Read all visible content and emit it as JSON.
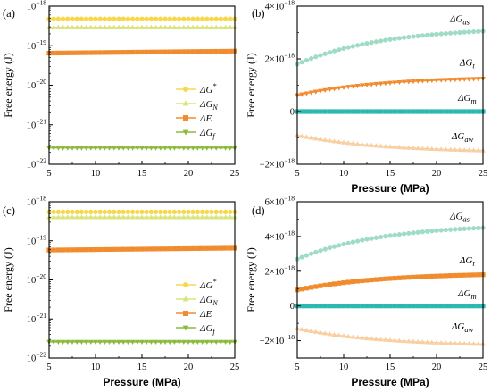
{
  "panels": [
    {
      "tag": "(a)",
      "chart_data": {
        "type": "line",
        "xlabel": "",
        "ylabel": "Free energy (J)",
        "xlim": [
          5,
          25
        ],
        "ylim": [
          1e-22,
          1e-18
        ],
        "yscale": "log",
        "xticks": [
          5,
          10,
          15,
          20,
          25
        ],
        "yticks": [
          {
            "value": 1e-22,
            "base": "10",
            "exp": "−22"
          },
          {
            "value": 1e-21,
            "base": "10",
            "exp": "−21"
          },
          {
            "value": 1e-20,
            "base": "10",
            "exp": "−20"
          },
          {
            "value": 1e-19,
            "base": "10",
            "exp": "−19"
          },
          {
            "value": 1e-18,
            "base": "10",
            "exp": "−18"
          }
        ],
        "legend": {
          "position": "lower-right"
        },
        "series": [
          {
            "name": "ΔG*",
            "legend_base": "ΔG",
            "legend_sup": "*",
            "legend_sub": "",
            "color": "#f7d84c",
            "marker": "circle",
            "y_start": 4.8e-19,
            "y_end": 4.8e-19,
            "shape": "linear"
          },
          {
            "name": "ΔG_N",
            "legend_base": "ΔG",
            "legend_sup": "",
            "legend_sub": "N",
            "color": "#d8e57a",
            "marker": "triangle-up",
            "y_start": 2.9e-19,
            "y_end": 2.9e-19,
            "shape": "linear"
          },
          {
            "name": "ΔE",
            "legend_base": "ΔE",
            "legend_sup": "",
            "legend_sub": "",
            "color": "#f08b2e",
            "marker": "square",
            "y_start": 6.5e-20,
            "y_end": 7.3e-20,
            "shape": "linear"
          },
          {
            "name": "ΔG_f",
            "legend_base": "ΔG",
            "legend_sup": "",
            "legend_sub": "f",
            "color": "#8cba3c",
            "marker": "triangle-down",
            "y_start": 2.6e-22,
            "y_end": 2.6e-22,
            "shape": "linear"
          }
        ]
      }
    },
    {
      "tag": "(b)",
      "chart_data": {
        "type": "line",
        "xlabel": "Pressure (MPa)",
        "ylabel": "Free energy (J)",
        "xlim": [
          5,
          25
        ],
        "ylim": [
          -2e-18,
          4e-18
        ],
        "yscale": "linear",
        "xticks": [
          5,
          10,
          15,
          20,
          25
        ],
        "yticks": [
          {
            "value": -2e-18,
            "base": "−2×10",
            "exp": "−18"
          },
          {
            "value": 0,
            "plain": "0"
          },
          {
            "value": 2e-18,
            "base": "2×10",
            "exp": "−18"
          },
          {
            "value": 4e-18,
            "base": "4×10",
            "exp": "−18"
          }
        ],
        "series": [
          {
            "name": "ΔG_as",
            "label_base": "ΔG",
            "label_sub": "as",
            "color": "#9fdcc4",
            "marker": "circle",
            "y_start": 1.8e-18,
            "y_end": 3.05e-18,
            "shape": "saturating",
            "label_at": [
              22.5,
              3.4e-18
            ]
          },
          {
            "name": "ΔG_t",
            "label_base": "ΔG",
            "label_sub": "t",
            "color": "#f08b2e",
            "marker": "triangle-down",
            "y_start": 6.2e-19,
            "y_end": 1.25e-18,
            "shape": "saturating",
            "label_at": [
              23.3,
              1.75e-18
            ]
          },
          {
            "name": "ΔG_m",
            "label_base": "ΔG",
            "label_sub": "m",
            "color": "#2bb8b0",
            "marker": "square",
            "y_start": 0.0,
            "y_end": 0.0,
            "shape": "linear",
            "label_at": [
              23.3,
              4e-19
            ]
          },
          {
            "name": "ΔG_aw",
            "label_base": "ΔG",
            "label_sub": "aw",
            "color": "#f8cfa0",
            "marker": "triangle-up",
            "y_start": -9e-19,
            "y_end": -1.48e-18,
            "shape": "saturating",
            "label_at": [
              22.8,
              -1.05e-18
            ]
          }
        ]
      }
    },
    {
      "tag": "(c)",
      "chart_data": {
        "type": "line",
        "xlabel": "Pressure (MPa)",
        "ylabel": "Free energy (J)",
        "xlim": [
          5,
          25
        ],
        "ylim": [
          1e-22,
          1e-18
        ],
        "yscale": "log",
        "xticks": [
          5,
          10,
          15,
          20,
          25
        ],
        "yticks": [
          {
            "value": 1e-22,
            "base": "10",
            "exp": "−22"
          },
          {
            "value": 1e-21,
            "base": "10",
            "exp": "−21"
          },
          {
            "value": 1e-20,
            "base": "10",
            "exp": "−20"
          },
          {
            "value": 1e-19,
            "base": "10",
            "exp": "−19"
          },
          {
            "value": 1e-18,
            "base": "10",
            "exp": "−18"
          }
        ],
        "legend": {
          "position": "lower-right"
        },
        "series": [
          {
            "name": "ΔG*",
            "legend_base": "ΔG",
            "legend_sup": "*",
            "legend_sub": "",
            "color": "#f7d84c",
            "marker": "circle",
            "y_start": 5.5e-19,
            "y_end": 5.5e-19,
            "shape": "linear"
          },
          {
            "name": "ΔG_N",
            "legend_base": "ΔG",
            "legend_sup": "",
            "legend_sub": "N",
            "color": "#d8e57a",
            "marker": "triangle-up",
            "y_start": 4e-19,
            "y_end": 4e-19,
            "shape": "linear"
          },
          {
            "name": "ΔE",
            "legend_base": "ΔE",
            "legend_sup": "",
            "legend_sub": "",
            "color": "#f08b2e",
            "marker": "square",
            "y_start": 5.8e-20,
            "y_end": 6.5e-20,
            "shape": "linear"
          },
          {
            "name": "ΔG_f",
            "legend_base": "ΔG",
            "legend_sup": "",
            "legend_sub": "f",
            "color": "#8cba3c",
            "marker": "triangle-down",
            "y_start": 2.6e-22,
            "y_end": 2.6e-22,
            "shape": "linear"
          }
        ]
      }
    },
    {
      "tag": "(d)",
      "chart_data": {
        "type": "line",
        "xlabel": "Pressure (MPa)",
        "ylabel": "Free energy (J)",
        "xlim": [
          5,
          25
        ],
        "ylim": [
          -3e-18,
          6e-18
        ],
        "yscale": "linear",
        "xticks": [
          5,
          10,
          15,
          20,
          25
        ],
        "yticks": [
          {
            "value": -2e-18,
            "base": "−2×10",
            "exp": "−18"
          },
          {
            "value": 0,
            "plain": "0"
          },
          {
            "value": 2e-18,
            "base": "2×10",
            "exp": "−18"
          },
          {
            "value": 4e-18,
            "base": "4×10",
            "exp": "−18"
          },
          {
            "value": 6e-18,
            "base": "6×10",
            "exp": "−18"
          }
        ],
        "series": [
          {
            "name": "ΔG_as",
            "label_base": "ΔG",
            "label_sub": "as",
            "color": "#9fdcc4",
            "marker": "circle",
            "y_start": 2.7e-18,
            "y_end": 4.5e-18,
            "shape": "saturating",
            "label_at": [
              22.5,
              5e-18
            ]
          },
          {
            "name": "ΔG_t",
            "label_base": "ΔG",
            "label_sub": "t",
            "color": "#f08b2e",
            "marker": "square",
            "y_start": 9.2e-19,
            "y_end": 1.8e-18,
            "shape": "saturating",
            "label_at": [
              23.3,
              2.45e-18
            ]
          },
          {
            "name": "ΔG_m",
            "label_base": "ΔG",
            "label_sub": "m",
            "color": "#2bb8b0",
            "marker": "square",
            "y_start": 0.0,
            "y_end": 0.0,
            "shape": "linear",
            "label_at": [
              23.3,
              5.5e-19
            ]
          },
          {
            "name": "ΔG_aw",
            "label_base": "ΔG",
            "label_sub": "aw",
            "color": "#f8cfa0",
            "marker": "triangle-up",
            "y_start": -1.3e-18,
            "y_end": -2.2e-18,
            "shape": "saturating",
            "label_at": [
              22.8,
              -1.35e-18
            ]
          }
        ]
      }
    }
  ]
}
